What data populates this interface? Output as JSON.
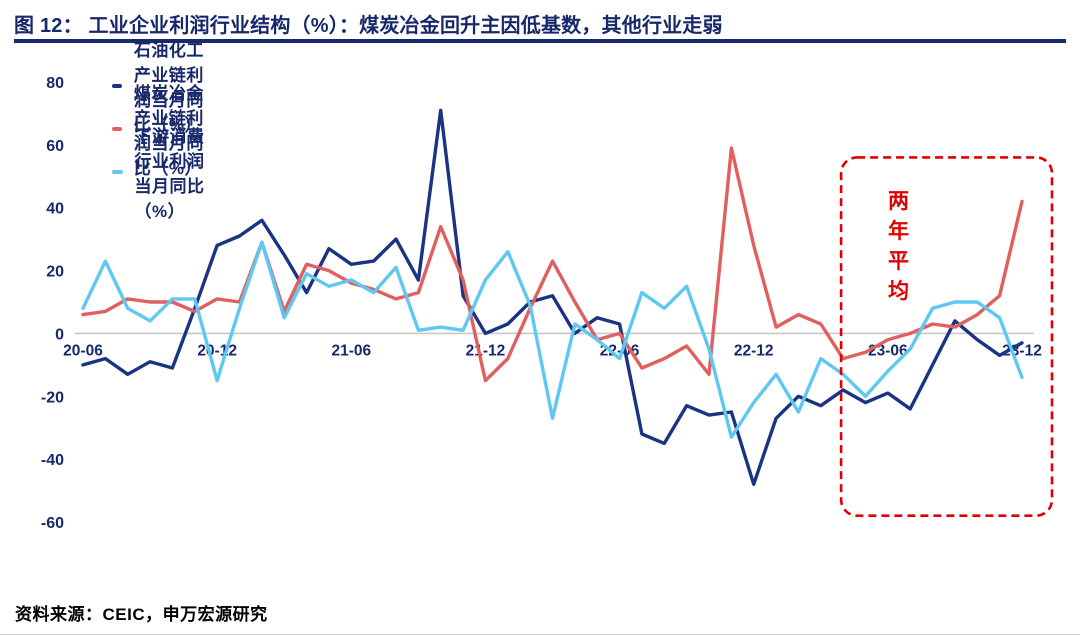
{
  "header": {
    "title": "图 12： 工业企业利润行业结构（%）：煤炭冶金回升主因低基数，其他行业走弱"
  },
  "footer": {
    "source": "资料来源：CEIC，申万宏源研究"
  },
  "colors": {
    "navy": "#17286b",
    "petro_line": "#1b3383",
    "coal_line": "#e05f5f",
    "consumer_line": "#5ec8f0",
    "zero_line": "#c8c8c8",
    "annotation_red": "#e00000"
  },
  "chart_data": {
    "type": "line",
    "title": "工业企业利润行业结构（%）",
    "unit": "%",
    "grid": "zero-baseline-only",
    "legend_position": "top-left",
    "ylim": [
      -60,
      80
    ],
    "y_ticks": [
      80,
      60,
      40,
      20,
      0,
      -20,
      -40,
      -60
    ],
    "x_tick_labels": [
      "20-06",
      "20-12",
      "21-06",
      "21-12",
      "22-06",
      "22-12",
      "23-06",
      "23-12"
    ],
    "x": [
      "20-06",
      "20-07",
      "20-08",
      "20-09",
      "20-10",
      "20-11",
      "20-12",
      "21-01",
      "21-02",
      "21-03",
      "21-04",
      "21-05",
      "21-06",
      "21-07",
      "21-08",
      "21-09",
      "21-10",
      "21-11",
      "21-12",
      "22-01",
      "22-02",
      "22-03",
      "22-04",
      "22-05",
      "22-06",
      "22-07",
      "22-08",
      "22-09",
      "22-10",
      "22-11",
      "22-12",
      "23-01",
      "23-02",
      "23-03",
      "23-04",
      "23-05",
      "23-06",
      "23-07",
      "23-08",
      "23-09",
      "23-10",
      "23-11",
      "23-12"
    ],
    "series": [
      {
        "name": "石油化工产业链利润当月同比（%）",
        "color": "#1b3383",
        "values": [
          -10,
          -8,
          -13,
          -9,
          -11,
          8,
          28,
          31,
          36,
          25,
          13,
          27,
          22,
          23,
          30,
          17,
          71,
          12,
          0,
          3,
          10,
          12,
          0,
          5,
          3,
          -32,
          -35,
          -23,
          -26,
          -25,
          -48,
          -27,
          -20,
          -23,
          -18,
          -22,
          -19,
          -24,
          -10,
          4,
          -2,
          -7,
          -3
        ]
      },
      {
        "name": "煤炭冶金产业链利润当月同比（%）",
        "color": "#e05f5f",
        "values": [
          6,
          7,
          11,
          10,
          10,
          7,
          11,
          10,
          29,
          7,
          22,
          20,
          16,
          14,
          11,
          13,
          34,
          17,
          -15,
          -8,
          8,
          23,
          10,
          -2,
          0,
          -11,
          -8,
          -4,
          -13,
          59,
          28,
          2,
          6,
          3,
          -8,
          -6,
          -2,
          0,
          3,
          2,
          6,
          12,
          42
        ]
      },
      {
        "name": "下游消费行业利润当月同比（%）",
        "color": "#5ec8f0",
        "values": [
          8,
          23,
          8,
          4,
          11,
          11,
          -15,
          8,
          29,
          5,
          19,
          15,
          17,
          13,
          21,
          1,
          2,
          1,
          17,
          26,
          9,
          -27,
          3,
          -2,
          -8,
          13,
          8,
          15,
          -5,
          -33,
          -22,
          -13,
          -25,
          -8,
          -13,
          -20,
          -12,
          -5,
          8,
          10,
          10,
          5,
          -14
        ]
      }
    ],
    "annotation_box": {
      "label": "两年平均",
      "x_range": [
        "23-04",
        "23-12"
      ],
      "y_range": [
        -58,
        56
      ]
    }
  }
}
